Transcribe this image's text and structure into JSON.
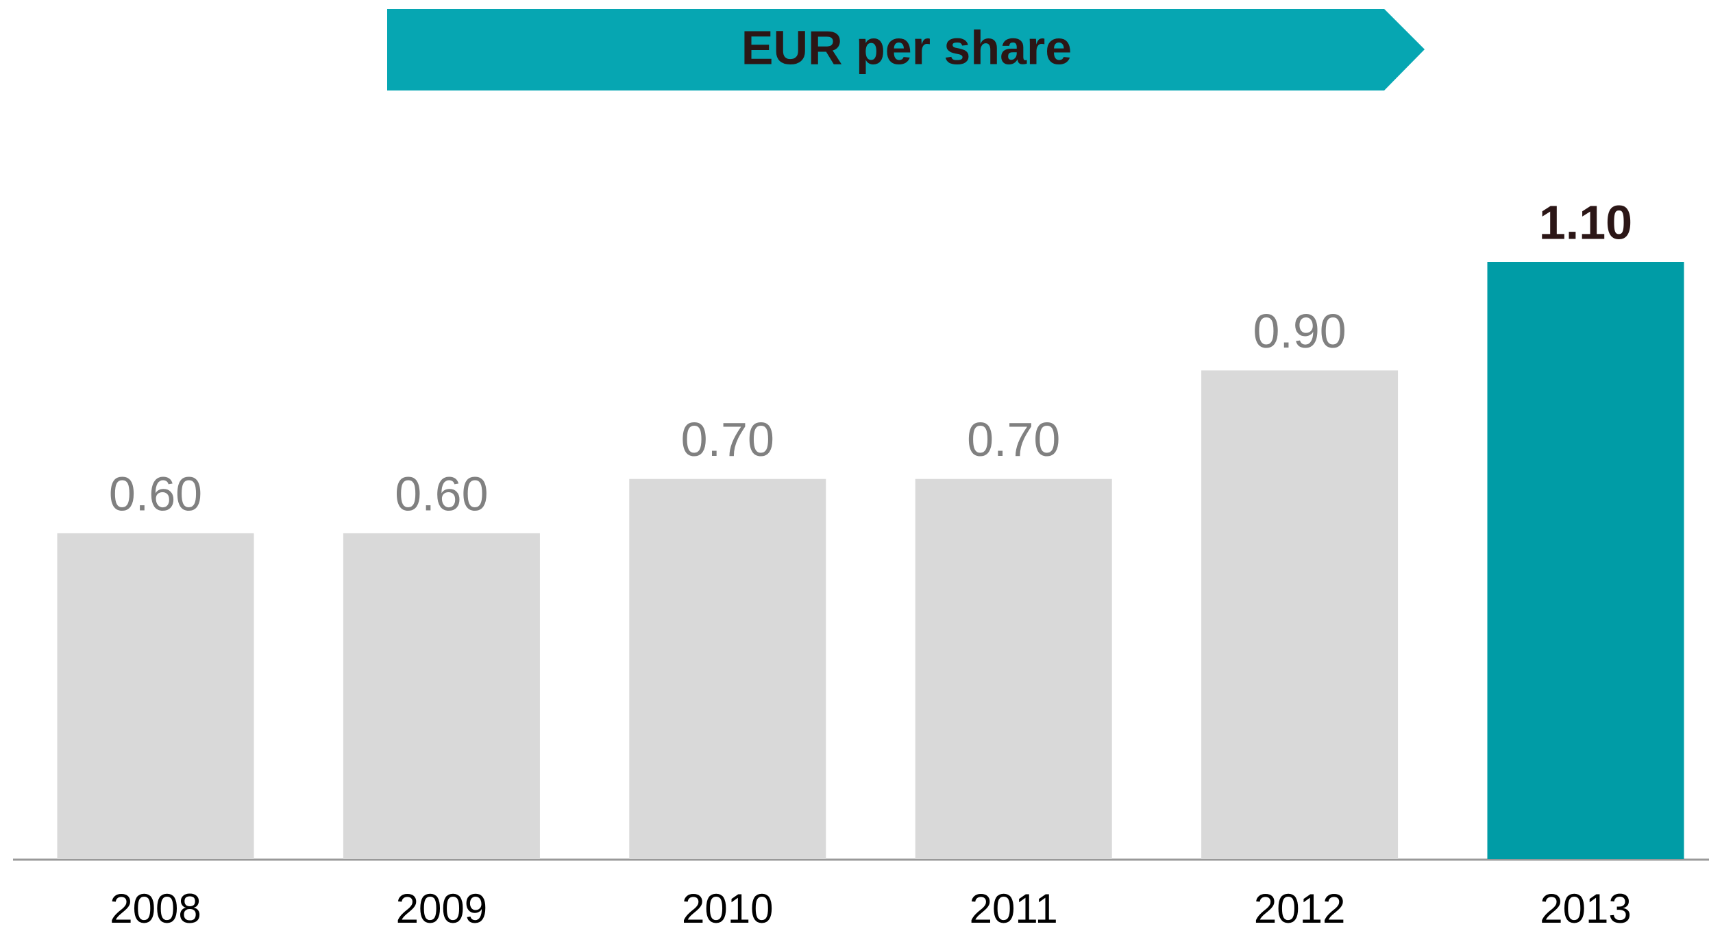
{
  "chart_data": {
    "type": "bar",
    "title": "EUR per share",
    "categories": [
      "2008",
      "2009",
      "2010",
      "2011",
      "2012",
      "2013"
    ],
    "values": [
      0.6,
      0.6,
      0.7,
      0.7,
      0.9,
      1.1
    ],
    "value_labels": [
      "0.60",
      "0.60",
      "0.70",
      "0.70",
      "0.90",
      "1.10"
    ],
    "colors": [
      "#d9d9d9",
      "#d9d9d9",
      "#d9d9d9",
      "#d9d9d9",
      "#d9d9d9",
      "#009ca6"
    ],
    "label_colors": [
      "#808080",
      "#808080",
      "#808080",
      "#808080",
      "#808080",
      "#2b1616"
    ],
    "label_weights": [
      "normal",
      "normal",
      "normal",
      "normal",
      "normal",
      "bold"
    ],
    "banner_color": "#06a6b2"
  }
}
